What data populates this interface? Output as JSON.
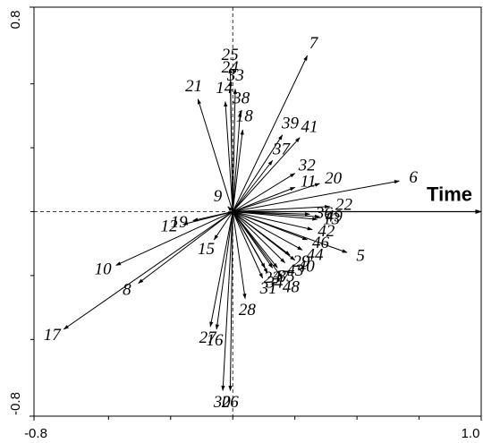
{
  "chart_data": {
    "type": "biplot",
    "labels": [
      "7",
      "25",
      "24",
      "33",
      "14",
      "21",
      "38",
      "18",
      "39",
      "41",
      "37",
      "32",
      "20",
      "6",
      "11",
      "22",
      "9",
      "19",
      "12",
      "13",
      "49",
      "36",
      "10",
      "8",
      "17",
      "15",
      "42",
      "5",
      "29",
      "44",
      "46",
      "40",
      "48",
      "23",
      "35",
      "34",
      "43",
      "31",
      "47",
      "28",
      "27",
      "16",
      "30",
      "26"
    ],
    "x": [
      0.3,
      -0.01,
      -0.01,
      0.01,
      -0.03,
      -0.14,
      0.03,
      0.04,
      0.2,
      0.27,
      0.16,
      0.25,
      0.35,
      0.67,
      0.25,
      0.39,
      -0.02,
      -0.16,
      -0.2,
      0.34,
      0.35,
      0.31,
      -0.47,
      -0.38,
      -0.68,
      -0.075,
      0.32,
      0.46,
      0.23,
      0.28,
      0.3,
      0.25,
      0.2,
      0.13,
      0.18,
      0.14,
      0.21,
      0.12,
      0.16,
      0.05,
      -0.09,
      -0.065,
      -0.04,
      -0.01
    ],
    "y": [
      0.61,
      0.56,
      0.51,
      0.48,
      0.43,
      0.44,
      0.39,
      0.32,
      0.3,
      0.29,
      0.2,
      0.15,
      0.11,
      0.12,
      0.095,
      0.02,
      0.02,
      -0.035,
      -0.05,
      -0.03,
      -0.02,
      -0.01,
      -0.21,
      -0.28,
      -0.46,
      -0.11,
      -0.07,
      -0.16,
      -0.17,
      -0.15,
      -0.11,
      -0.19,
      -0.26,
      -0.22,
      -0.22,
      -0.24,
      -0.2,
      -0.26,
      -0.22,
      -0.34,
      -0.45,
      -0.46,
      -0.7,
      -0.7
    ],
    "supplementary": {
      "name": "Time",
      "x": 1.0,
      "y": 0
    },
    "xlim": [
      -0.8,
      1.0
    ],
    "ylim": [
      -0.8,
      0.8
    ],
    "xticks": [
      -0.8,
      {
        "value": 1.0,
        "label": "1.0"
      }
    ],
    "yticks": [
      -0.8,
      0.8
    ],
    "xminorticks": [
      -0.5,
      -0.25,
      0,
      0.25,
      0.5,
      0.75
    ],
    "yminorticks": [
      -0.5,
      -0.25,
      0,
      0.25,
      0.5
    ],
    "color": "#000000"
  }
}
